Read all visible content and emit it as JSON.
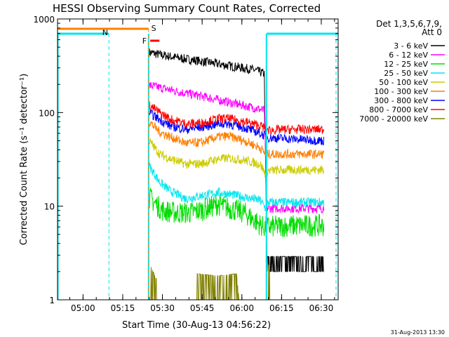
{
  "chart_data": {
    "type": "line",
    "title": "HESSI Observing Summary Count Rates, Corrected",
    "xlabel": "Start Time (30-Aug-13 04:56:22)",
    "ylabel": "Corrected Count Rate (s⁻¹ detector⁻¹)",
    "y_scale": "log",
    "ylim": [
      1,
      1000
    ],
    "xlim_minutes_after_start": [
      -6,
      34
    ],
    "x_tick_labels": [
      "05:00",
      "05:15",
      "05:30",
      "05:45",
      "06:00",
      "06:15",
      "06:30"
    ],
    "x_tick_minutes_after_04_56_22": [
      3.63,
      18.63,
      33.63,
      48.63,
      63.63,
      78.63,
      93.63
    ],
    "y_tick_labels": [
      "1",
      "10",
      "100",
      "1000"
    ],
    "legend": {
      "placement": "right, outside plot",
      "header": [
        "Det 1,3,5,6,7,9,",
        "Att 0"
      ],
      "entries": [
        {
          "label": "3 - 6 keV",
          "color": "#000000"
        },
        {
          "label": "6 - 12 keV",
          "color": "#ff00ff"
        },
        {
          "label": "12 - 25 keV",
          "color": "#00dd00"
        },
        {
          "label": "25 - 50 keV",
          "color": "#00e5ee"
        },
        {
          "label": "50 - 100 keV",
          "color": "#cccc00"
        },
        {
          "label": "100 - 300 keV",
          "color": "#ff7f00"
        },
        {
          "label": "300 - 800 keV",
          "color": "#0000ff"
        },
        {
          "label": "800 - 7000 keV",
          "color": "#ff0000"
        },
        {
          "label": "7000 - 20000 keV",
          "color": "#808000"
        }
      ]
    },
    "series_time_range": [
      "05:24",
      "06:31"
    ],
    "series": [
      {
        "color": "#000000",
        "points": [
          [
            0,
            440
          ],
          [
            5,
            410
          ],
          [
            12,
            380
          ],
          [
            22,
            345
          ],
          [
            32,
            310
          ],
          [
            40,
            285
          ],
          [
            43.5,
            260
          ],
          [
            44.5,
            2.5
          ],
          [
            48,
            2.5
          ],
          [
            58,
            2.5
          ],
          [
            66,
            2.5
          ]
        ]
      },
      {
        "color": "#ff00ff",
        "points": [
          [
            0,
            195
          ],
          [
            6,
            180
          ],
          [
            12,
            165
          ],
          [
            22,
            145
          ],
          [
            32,
            125
          ],
          [
            40,
            112
          ],
          [
            43.5,
            105
          ],
          [
            44.5,
            9.5
          ],
          [
            55,
            9.5
          ],
          [
            66,
            9.5
          ]
        ]
      },
      {
        "color": "#00dd00",
        "points": [
          [
            0,
            12.5
          ],
          [
            5,
            9
          ],
          [
            10,
            8.5
          ],
          [
            16,
            8.5
          ],
          [
            22,
            9.5
          ],
          [
            26,
            10.5
          ],
          [
            30,
            9.5
          ],
          [
            36,
            8.5
          ],
          [
            40,
            7
          ],
          [
            43,
            6
          ],
          [
            44.5,
            6
          ],
          [
            55,
            6.2
          ],
          [
            66,
            6.2
          ]
        ]
      },
      {
        "color": "#00e5ee",
        "points": [
          [
            0,
            27
          ],
          [
            4,
            18
          ],
          [
            8,
            14.5
          ],
          [
            14,
            12
          ],
          [
            20,
            13
          ],
          [
            26,
            14
          ],
          [
            30,
            13.5
          ],
          [
            36,
            12.5
          ],
          [
            42,
            11.5
          ],
          [
            44,
            9.5
          ],
          [
            45,
            11
          ],
          [
            55,
            11
          ],
          [
            66,
            11
          ]
        ]
      },
      {
        "color": "#cccc00",
        "points": [
          [
            0,
            50
          ],
          [
            4,
            36
          ],
          [
            8,
            32
          ],
          [
            14,
            28
          ],
          [
            20,
            28.5
          ],
          [
            26,
            32
          ],
          [
            30,
            32.5
          ],
          [
            36,
            31
          ],
          [
            42,
            28
          ],
          [
            44,
            22
          ],
          [
            45,
            24
          ],
          [
            55,
            24.5
          ],
          [
            66,
            24.5
          ]
        ]
      },
      {
        "color": "#ff7f00",
        "points": [
          [
            0,
            80
          ],
          [
            4,
            62
          ],
          [
            8,
            55
          ],
          [
            14,
            47
          ],
          [
            20,
            48
          ],
          [
            26,
            55
          ],
          [
            30,
            56
          ],
          [
            36,
            50
          ],
          [
            42,
            42
          ],
          [
            44,
            36
          ],
          [
            45,
            36
          ],
          [
            55,
            36
          ],
          [
            66,
            36
          ]
        ]
      },
      {
        "color": "#0000ff",
        "points": [
          [
            0,
            100
          ],
          [
            4,
            84
          ],
          [
            8,
            72
          ],
          [
            14,
            66
          ],
          [
            20,
            70
          ],
          [
            26,
            76
          ],
          [
            30,
            76
          ],
          [
            36,
            69
          ],
          [
            42,
            60
          ],
          [
            44,
            56
          ],
          [
            45,
            54
          ],
          [
            55,
            52
          ],
          [
            66,
            50
          ]
        ]
      },
      {
        "color": "#ff0000",
        "points": [
          [
            0,
            120
          ],
          [
            4,
            100
          ],
          [
            8,
            85
          ],
          [
            14,
            76
          ],
          [
            20,
            78
          ],
          [
            26,
            86
          ],
          [
            30,
            86
          ],
          [
            36,
            80
          ],
          [
            42,
            72
          ],
          [
            44,
            68
          ],
          [
            45,
            65
          ],
          [
            55,
            66
          ],
          [
            66,
            66
          ]
        ]
      },
      {
        "color": "#808000",
        "points": [
          [
            0,
            2.5
          ],
          [
            3,
            1.6
          ],
          [
            8,
            1.0
          ],
          [
            17,
            1.0
          ],
          [
            18,
            1.9
          ],
          [
            26,
            1.8
          ],
          [
            33,
            1.9
          ],
          [
            34,
            1.0
          ],
          [
            44,
            1.0
          ],
          [
            45,
            2.4
          ],
          [
            66,
            1.0
          ]
        ]
      }
    ],
    "annotations": [
      {
        "label": "N",
        "type": "night",
        "color": "#00e5ee"
      },
      {
        "label": "S",
        "type": "SAA",
        "color": "#ff7f00"
      },
      {
        "label": "F",
        "type": "flare",
        "color": "#ff0000"
      }
    ]
  },
  "footer": {
    "timestamp": "31-Aug-2013 13:30"
  }
}
